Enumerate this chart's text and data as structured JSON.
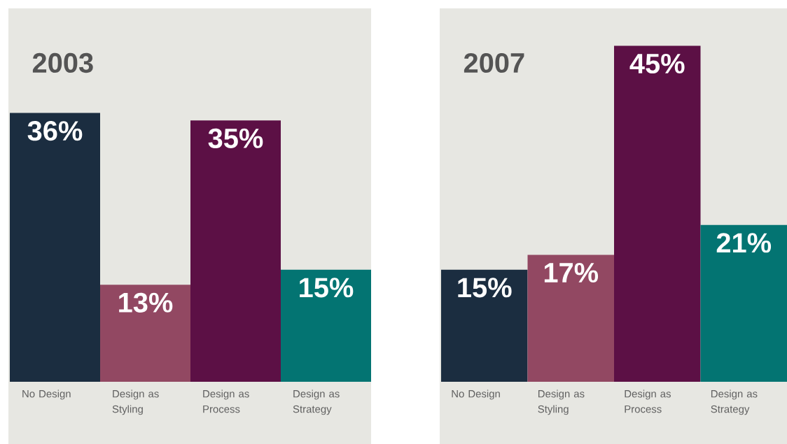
{
  "chart_data": [
    {
      "type": "bar",
      "title": "2003",
      "categories": [
        "No Design",
        "Design as Styling",
        "Design as Process",
        "Design as Strategy"
      ],
      "values": [
        36,
        13,
        35,
        15
      ],
      "value_labels": [
        "36%",
        "13%",
        "35%",
        "15%"
      ],
      "colors": [
        "#1b2d40",
        "#924862",
        "#5c1045",
        "#037472"
      ],
      "ylim": [
        0,
        50
      ],
      "tick_labels": "x"
    },
    {
      "type": "bar",
      "title": "2007",
      "categories": [
        "No Design",
        "Design as Styling",
        "Design as Process",
        "Design as Strategy"
      ],
      "values": [
        15,
        17,
        45,
        21
      ],
      "value_labels": [
        "15%",
        "17%",
        "45%",
        "21%"
      ],
      "colors": [
        "#1b2d40",
        "#924862",
        "#5c1045",
        "#037472"
      ],
      "ylim": [
        0,
        50
      ],
      "tick_labels": "x"
    }
  ]
}
